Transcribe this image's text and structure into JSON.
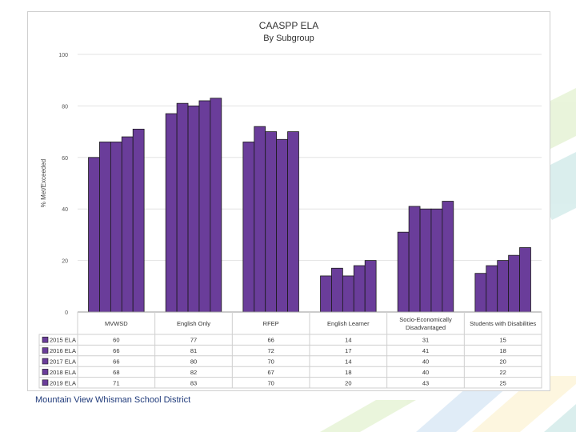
{
  "chart_data": {
    "type": "bar",
    "title": "CAASPP ELA",
    "subtitle": "By Subgroup",
    "xlabel": "",
    "ylabel": "% Met/Exceeded",
    "ylim": [
      0,
      100
    ],
    "yticks": [
      0,
      20,
      40,
      60,
      80,
      100
    ],
    "grid": true,
    "bar_color": "#6a3d9a",
    "categories": [
      [
        "MVWSD"
      ],
      [
        "English Only"
      ],
      [
        "RFEP"
      ],
      [
        "English Learner"
      ],
      [
        "Socio-Economically",
        "Disadvantaged"
      ],
      [
        "Students with Disabilities"
      ]
    ],
    "series": [
      {
        "name": "2015 ELA",
        "values": [
          60,
          77,
          66,
          14,
          31,
          15
        ]
      },
      {
        "name": "2016 ELA",
        "values": [
          66,
          81,
          72,
          17,
          41,
          18
        ]
      },
      {
        "name": "2017 ELA",
        "values": [
          66,
          80,
          70,
          14,
          40,
          20
        ]
      },
      {
        "name": "2018 ELA",
        "values": [
          68,
          82,
          67,
          18,
          40,
          22
        ]
      },
      {
        "name": "2019 ELA",
        "values": [
          71,
          83,
          70,
          20,
          43,
          25
        ]
      }
    ]
  },
  "footer": {
    "text": "Mountain View Whisman School District"
  },
  "colors": {
    "accent_green": "#8cc63f",
    "accent_blue": "#5b9bd5",
    "accent_yellow": "#f7d154",
    "accent_teal": "#3aa6a0"
  }
}
